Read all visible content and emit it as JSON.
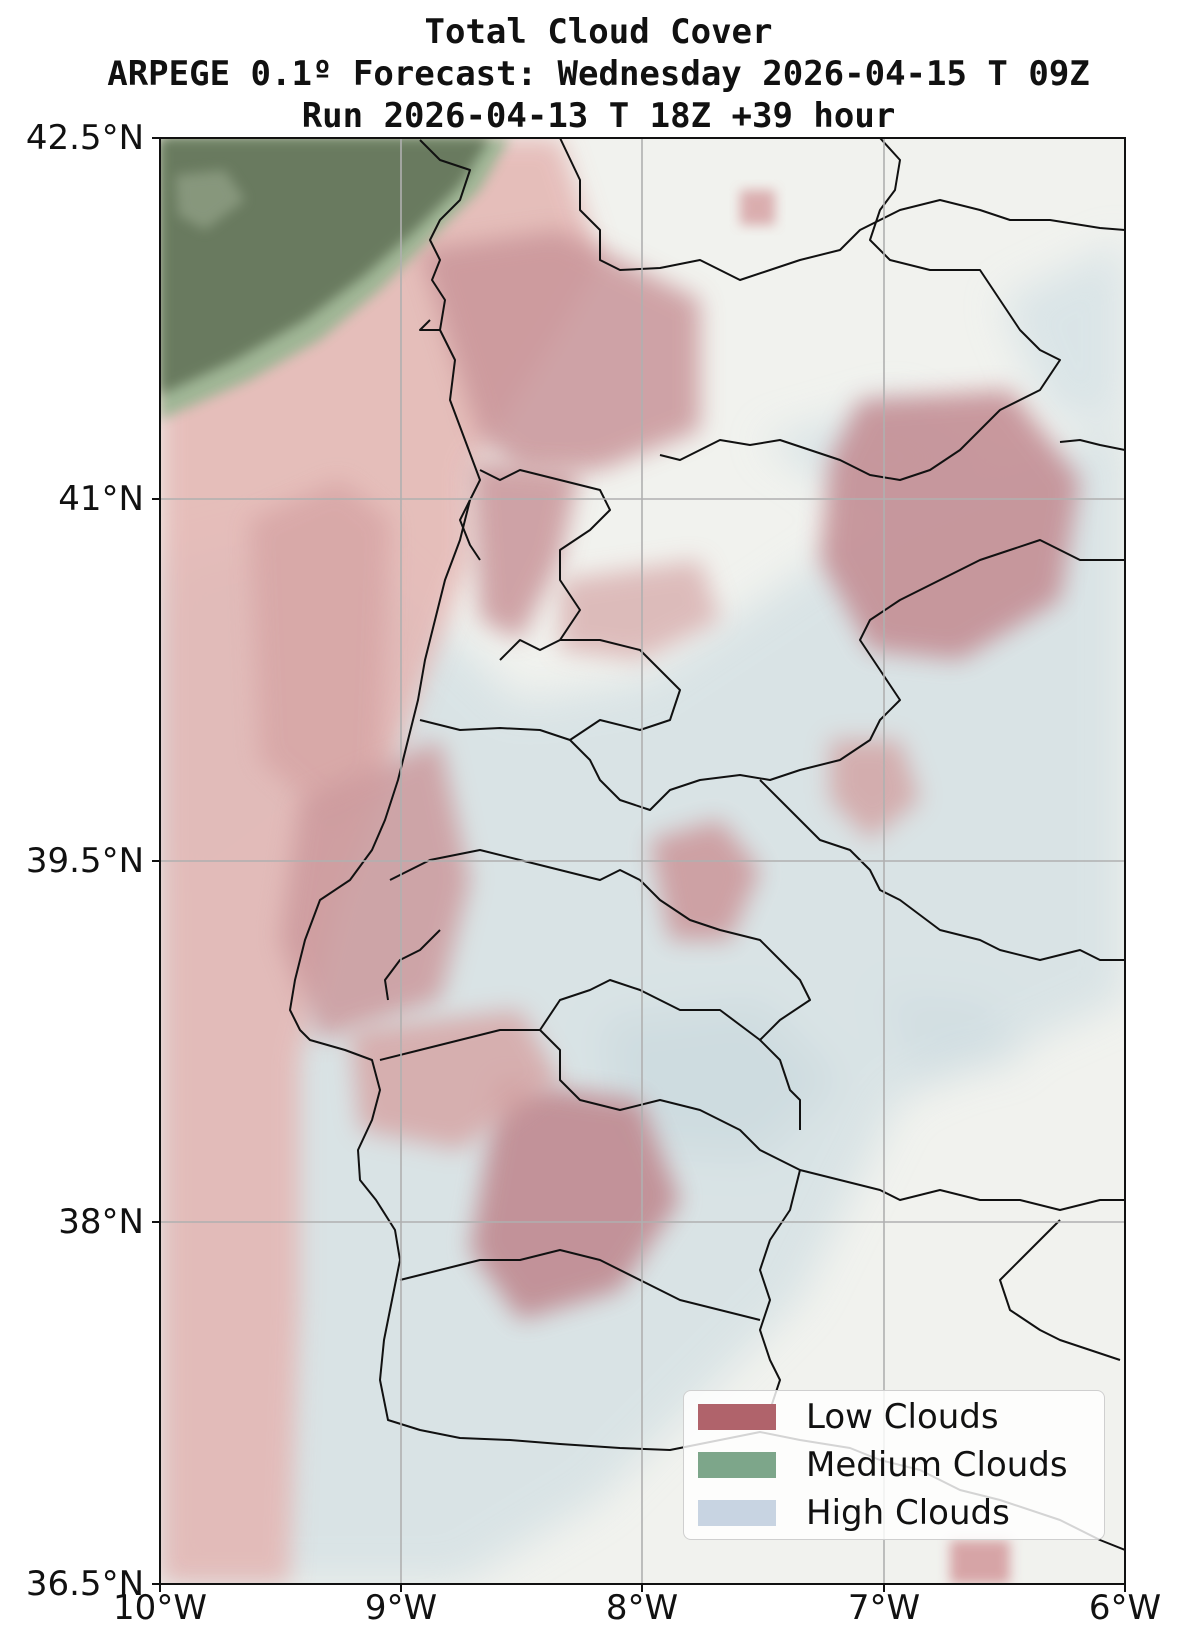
{
  "title": {
    "line1": "Total Cloud Cover",
    "line2": "ARPEGE 0.1º Forecast: Wednesday 2026-04-15 T 09Z",
    "line3": "Run 2026-04-13 T 18Z +39 hour"
  },
  "axes": {
    "lat_ticks": [
      "42.5°N",
      "41°N",
      "39.5°N",
      "38°N",
      "36.5°N"
    ],
    "lon_ticks": [
      "10°W",
      "9°W",
      "8°W",
      "7°W",
      "6°W"
    ],
    "lat_range": [
      36.5,
      42.5
    ],
    "lon_range": [
      -10,
      -6
    ],
    "grid": true
  },
  "legend": {
    "items": [
      {
        "label": "Low Clouds",
        "color": "#b0636b"
      },
      {
        "label": "Medium Clouds",
        "color": "#7da68a"
      },
      {
        "label": "High Clouds",
        "color": "#c8d4e2"
      }
    ]
  },
  "colors": {
    "low": "#c56b70",
    "medium": "#3f5a35",
    "high": "#a9c3d2",
    "land_base": "#f1f2ee"
  }
}
